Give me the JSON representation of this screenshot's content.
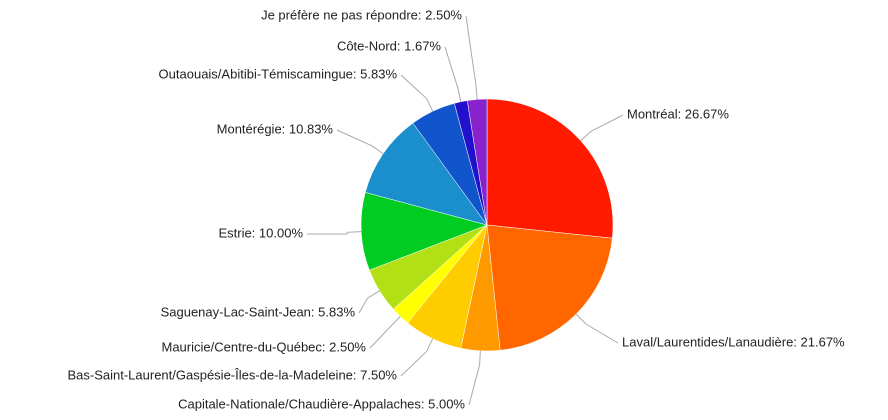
{
  "chart_data": {
    "type": "pie",
    "values": [
      26.67,
      21.67,
      5.0,
      7.5,
      2.5,
      5.83,
      10.0,
      10.83,
      5.83,
      1.67,
      2.5
    ],
    "value_labels": [
      "Montréal: 26.67%",
      "Laval/Laurentides/Lanaudière: 21.67%",
      "Capitale-Nationale/Chaudière-Appalaches: 5.00%",
      "Bas-Saint-Laurent/Gaspésie-Îles-de-la-Madeleine: 7.50%",
      "Mauricie/Centre-du-Québec: 2.50%",
      "Saguenay-Lac-Saint-Jean: 5.83%",
      "Estrie: 10.00%",
      "Montérégie: 10.83%",
      "Outaouais/Abitibi-Témiscamingue: 5.83%",
      "Côte-Nord: 1.67%",
      "Je préfère ne pas répondre: 2.50%"
    ],
    "colors": [
      "#ff1a00",
      "#ff6600",
      "#ff9900",
      "#ffcc00",
      "#ffff00",
      "#b3e014",
      "#00cc22",
      "#1a8fcc",
      "#1155cc",
      "#2211cc",
      "#8822cc"
    ]
  }
}
